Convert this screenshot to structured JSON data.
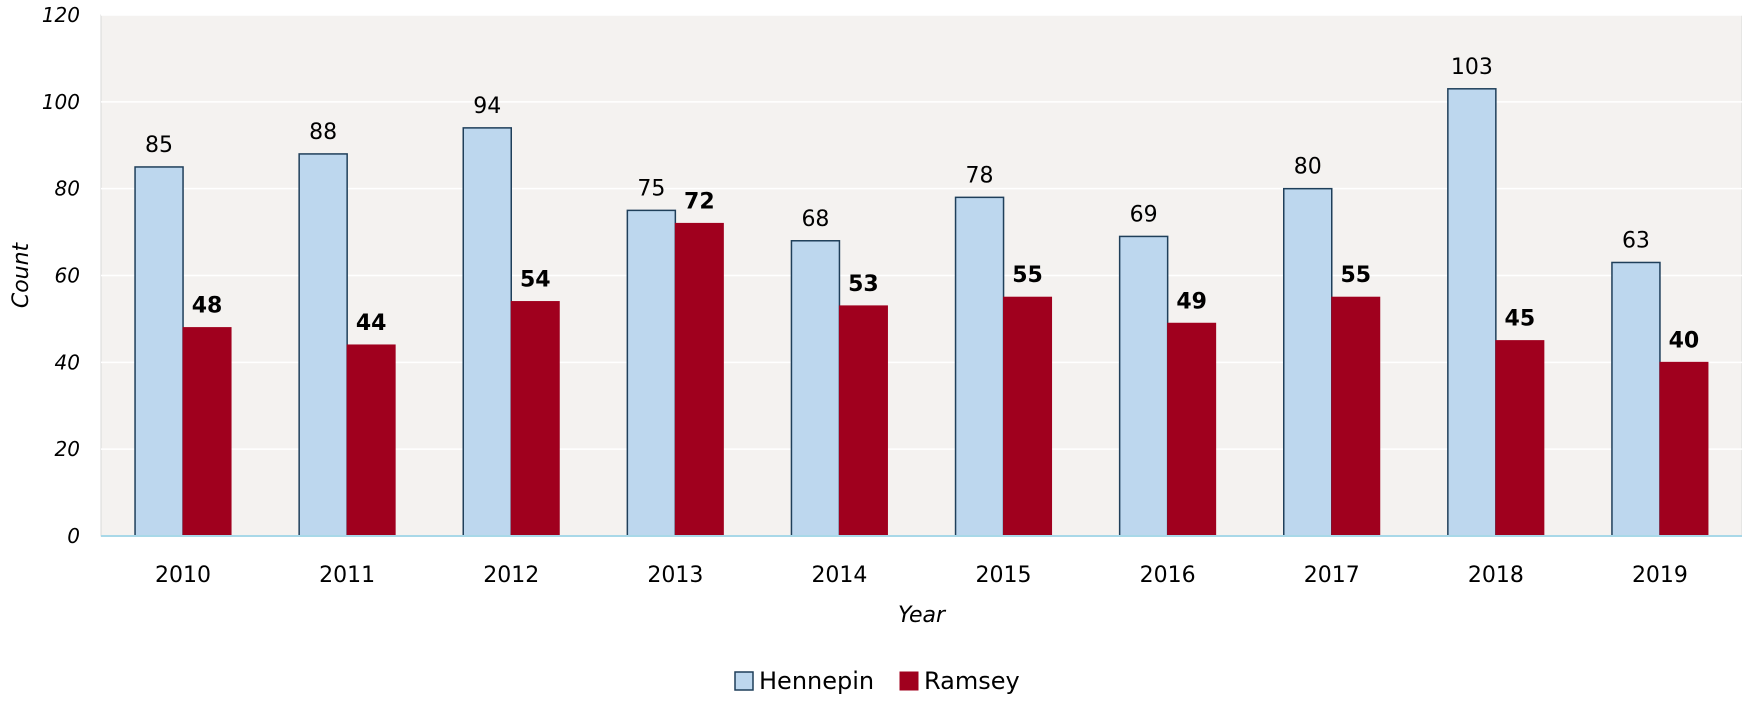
{
  "chart_data": {
    "type": "bar",
    "title": "",
    "xlabel": "Year",
    "ylabel": "Count",
    "ylim": [
      0,
      120
    ],
    "yticks": [
      0,
      20,
      40,
      60,
      80,
      100,
      120
    ],
    "grid": true,
    "legend_position": "bottom",
    "categories": [
      "2010",
      "2011",
      "2012",
      "2013",
      "2014",
      "2015",
      "2016",
      "2017",
      "2018",
      "2019"
    ],
    "series": [
      {
        "name": "Hennepin",
        "values": [
          85,
          88,
          94,
          75,
          68,
          78,
          69,
          80,
          103,
          63
        ],
        "color": "#bdd7ee",
        "stroke": "#1f3f5a",
        "label_weight": "normal"
      },
      {
        "name": "Ramsey",
        "values": [
          48,
          44,
          54,
          72,
          53,
          55,
          49,
          55,
          45,
          40
        ],
        "color": "#a0001e",
        "stroke": "#a0001e",
        "label_weight": "bold"
      }
    ],
    "plot_background": "#f4f2f0",
    "gridline_color": "#ffffff",
    "axis_color": "#a8d8e8"
  }
}
